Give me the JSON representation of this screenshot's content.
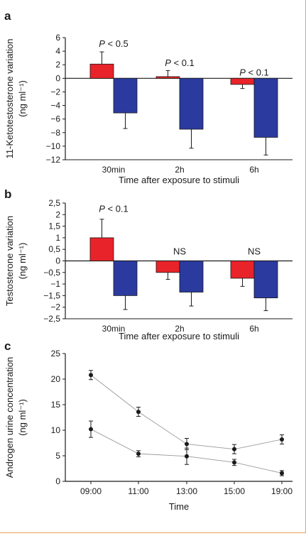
{
  "chart_data": [
    {
      "panel": "a",
      "type": "bar",
      "xlabel": "Time after exposure to stimuli",
      "ylabel_line1": "11-Ketotestosterone variation",
      "ylabel_line2": "(ng ml⁻¹)",
      "ylim": [
        -12,
        6
      ],
      "yticks": [
        -12,
        -10,
        -8,
        -6,
        -4,
        -2,
        0,
        2,
        4,
        6
      ],
      "ytick_labels": [
        "−12",
        "−10",
        "−8",
        "−6",
        "−4",
        "−2",
        "0",
        "2",
        "4",
        "6"
      ],
      "categories": [
        "30min",
        "2h",
        "6h"
      ],
      "series": [
        {
          "color": "#e8232a",
          "values": [
            2.1,
            0.25,
            -0.9
          ],
          "errors": [
            1.8,
            0.9,
            0.6
          ]
        },
        {
          "color": "#2b3a9e",
          "values": [
            -5.1,
            -7.5,
            -8.7
          ],
          "errors": [
            2.3,
            2.8,
            2.6
          ]
        }
      ],
      "annotations": [
        {
          "category": 0,
          "label_italic": "P",
          "label_rest": " < 0.5",
          "y": 4.2
        },
        {
          "category": 1,
          "label_italic": "P",
          "label_rest": " < 0.1",
          "y": 1.4
        },
        {
          "category": 2,
          "label_italic": "P",
          "label_rest": " < 0.1",
          "y": 0.0
        }
      ]
    },
    {
      "panel": "b",
      "type": "bar",
      "xlabel": "Time after exposure to stimuli",
      "ylabel_line1": "Testosterone variation",
      "ylabel_line2": "(ng ml⁻¹)",
      "ylim": [
        -2.5,
        2.5
      ],
      "yticks": [
        -2.5,
        -2,
        -1.5,
        -1,
        -0.5,
        0,
        0.5,
        1,
        1.5,
        2,
        2.5
      ],
      "ytick_labels": [
        "−2,5",
        "−2",
        "−1,5",
        "−1",
        "−0,5",
        "0",
        "0,5",
        "1",
        "1,5",
        "2",
        "2,5"
      ],
      "categories": [
        "30min",
        "2h",
        "6h"
      ],
      "series": [
        {
          "color": "#e8232a",
          "values": [
            1.0,
            -0.5,
            -0.75
          ],
          "errors": [
            0.8,
            0.3,
            0.35
          ]
        },
        {
          "color": "#2b3a9e",
          "values": [
            -1.5,
            -1.35,
            -1.6
          ],
          "errors": [
            0.6,
            0.6,
            0.55
          ]
        }
      ],
      "annotations": [
        {
          "category": 0,
          "label_italic": "P",
          "label_rest": " < 0.1",
          "y": 2.0
        },
        {
          "category": 1,
          "label_italic": "",
          "label_rest": "NS",
          "y": 0.15
        },
        {
          "category": 2,
          "label_italic": "",
          "label_rest": "NS",
          "y": 0.15
        }
      ]
    },
    {
      "panel": "c",
      "type": "line",
      "xlabel": "Time",
      "ylabel_line1": "Androgen urine concentration",
      "ylabel_line2": "(ng ml⁻¹)",
      "ylim": [
        0,
        25
      ],
      "yticks": [
        0,
        5,
        10,
        15,
        20,
        25
      ],
      "ytick_labels": [
        "0",
        "5",
        "10",
        "15",
        "20",
        "25"
      ],
      "categories": [
        "09:00",
        "11:00",
        "13:00",
        "15:00",
        "19:00"
      ],
      "series": [
        {
          "color": "#1a1a1a",
          "values": [
            20.8,
            13.6,
            7.3,
            6.3,
            8.2
          ],
          "errors": [
            0.9,
            0.9,
            1.1,
            0.9,
            0.9
          ]
        },
        {
          "color": "#1a1a1a",
          "values": [
            10.2,
            5.4,
            4.9,
            3.7,
            1.6
          ],
          "errors": [
            1.6,
            0.6,
            1.6,
            0.6,
            0.5
          ]
        }
      ]
    }
  ]
}
